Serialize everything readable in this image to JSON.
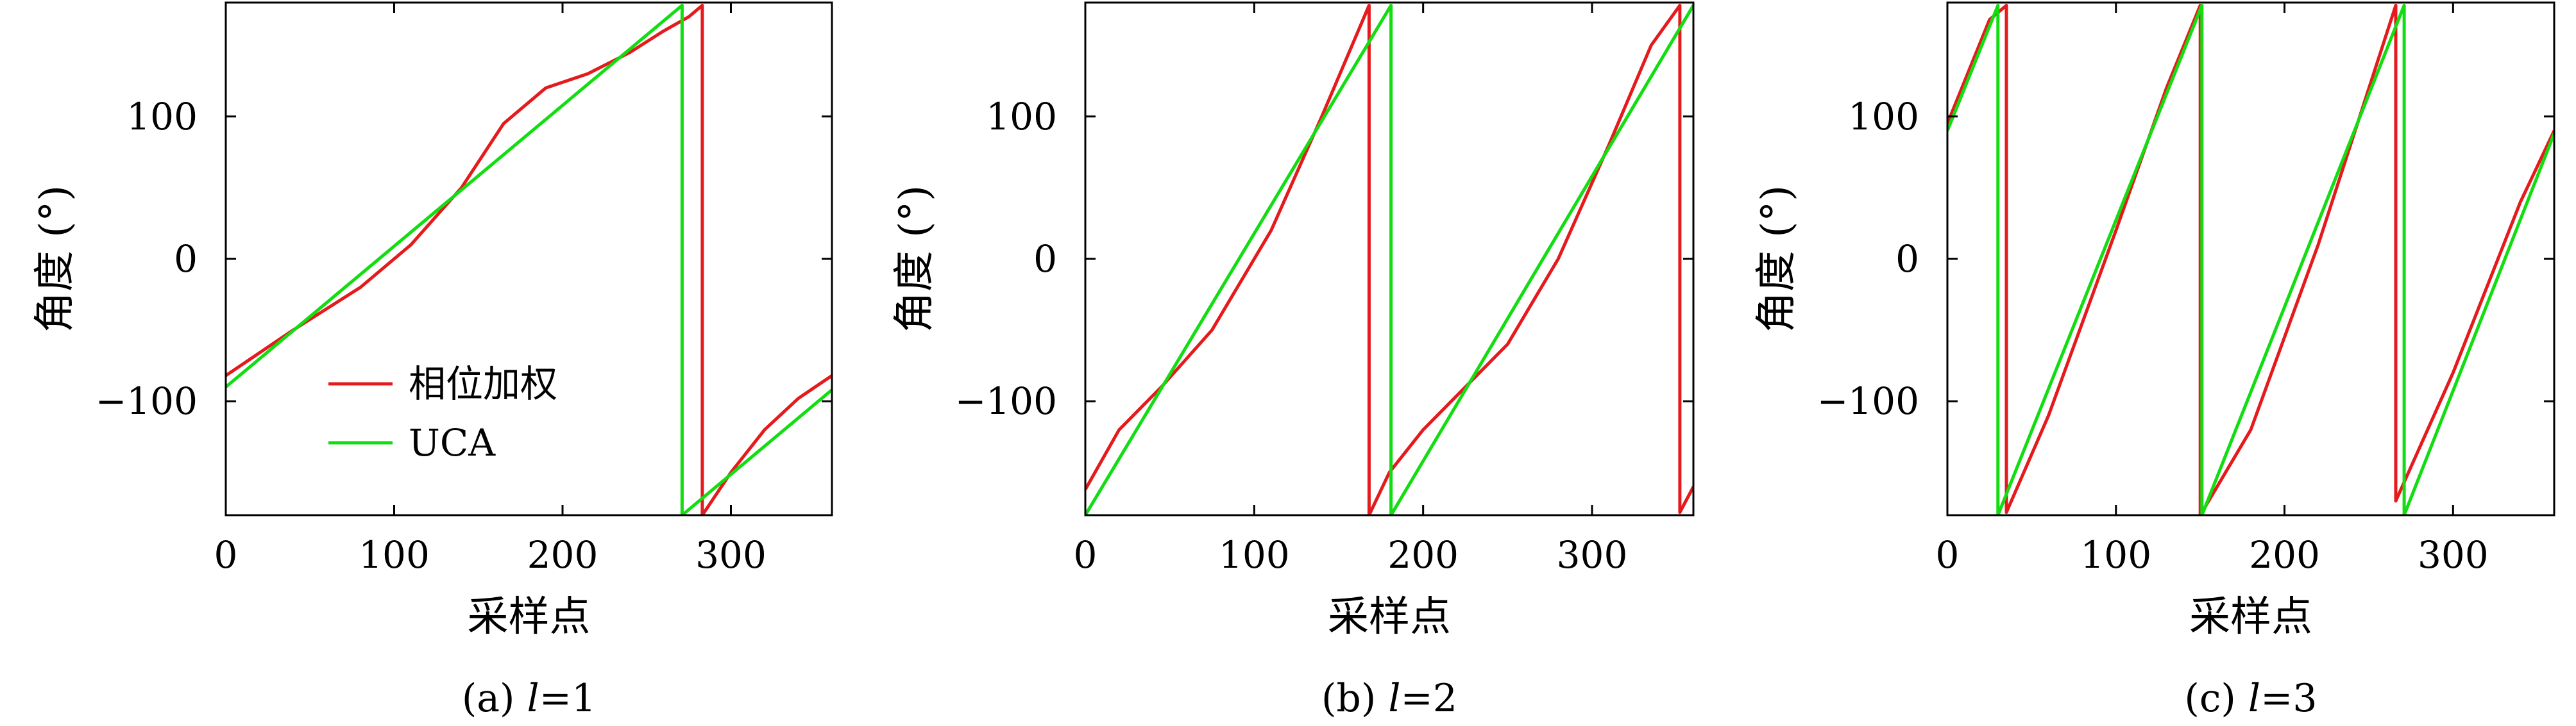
{
  "figure": {
    "panels": [
      {
        "caption_prefix": "(a) ",
        "caption_var": "l",
        "caption_suffix": "=1"
      },
      {
        "caption_prefix": "(b) ",
        "caption_var": "l",
        "caption_suffix": "=2"
      },
      {
        "caption_prefix": "(c) ",
        "caption_var": "l",
        "caption_suffix": "=3"
      }
    ],
    "colors": {
      "phase_weighted": "#e41a1c",
      "uca": "#11dd11",
      "frame": "#000000"
    }
  },
  "chart_data": [
    {
      "type": "line",
      "title": "",
      "caption": "(a) l=1",
      "xlabel": "采样点",
      "ylabel": "角度 (°)",
      "xlim": [
        0,
        360
      ],
      "ylim": [
        -180,
        180
      ],
      "xticks": [
        0,
        100,
        200,
        300
      ],
      "xtick_labels": [
        "0",
        "100",
        "200",
        "300"
      ],
      "yticks": [
        -100,
        0,
        100
      ],
      "ytick_labels": [
        "−100",
        "0",
        "100"
      ],
      "legend": {
        "position": "bottom-left",
        "entries": [
          "相位加权",
          "UCA"
        ]
      },
      "series": [
        {
          "name": "相位加权",
          "color": "#e41a1c",
          "x": [
            0,
            40,
            80,
            110,
            140,
            165,
            190,
            215,
            240,
            260,
            275,
            283,
            283,
            300,
            320,
            340,
            360
          ],
          "y": [
            -82,
            -50,
            -20,
            10,
            50,
            95,
            120,
            130,
            145,
            160,
            170,
            178,
            -180,
            -150,
            -120,
            -98,
            -82
          ]
        },
        {
          "name": "UCA",
          "color": "#11dd11",
          "x": [
            0,
            271,
            271,
            360
          ],
          "y": [
            -90,
            178,
            -180,
            -92
          ]
        }
      ]
    },
    {
      "type": "line",
      "title": "",
      "caption": "(b) l=2",
      "xlabel": "采样点",
      "ylabel": "角度 (°)",
      "xlim": [
        0,
        360
      ],
      "ylim": [
        -180,
        180
      ],
      "xticks": [
        0,
        100,
        200,
        300
      ],
      "xtick_labels": [
        "0",
        "100",
        "200",
        "300"
      ],
      "yticks": [
        -100,
        0,
        100
      ],
      "ytick_labels": [
        "−100",
        "0",
        "100"
      ],
      "series": [
        {
          "name": "相位加权",
          "color": "#e41a1c",
          "x": [
            0,
            20,
            45,
            75,
            110,
            140,
            168,
            168,
            180,
            200,
            225,
            250,
            280,
            310,
            335,
            352,
            352,
            360
          ],
          "y": [
            -162,
            -120,
            -90,
            -50,
            20,
            100,
            178,
            -180,
            -150,
            -120,
            -90,
            -60,
            0,
            80,
            150,
            178,
            -178,
            -160
          ]
        },
        {
          "name": "UCA",
          "color": "#11dd11",
          "x": [
            0,
            181,
            181,
            360
          ],
          "y": [
            -180,
            178,
            -180,
            178
          ]
        }
      ]
    },
    {
      "type": "line",
      "title": "",
      "caption": "(c) l=3",
      "xlabel": "采样点",
      "ylabel": "角度 (°)",
      "xlim": [
        0,
        360
      ],
      "ylim": [
        -180,
        180
      ],
      "xticks": [
        0,
        100,
        200,
        300
      ],
      "xtick_labels": [
        "0",
        "100",
        "200",
        "300"
      ],
      "yticks": [
        -100,
        0,
        100
      ],
      "ytick_labels": [
        "−100",
        "0",
        "100"
      ],
      "series": [
        {
          "name": "相位加权",
          "color": "#e41a1c",
          "x": [
            0,
            25,
            25,
            35,
            35,
            60,
            100,
            130,
            150,
            150,
            180,
            220,
            266,
            266,
            300,
            340,
            360
          ],
          "y": [
            95,
            168,
            168,
            178,
            -178,
            -110,
            20,
            120,
            178,
            -180,
            -120,
            10,
            178,
            -170,
            -80,
            40,
            90
          ]
        },
        {
          "name": "UCA",
          "color": "#11dd11",
          "x": [
            0,
            30,
            30,
            151,
            151,
            271,
            271,
            360
          ],
          "y": [
            90,
            178,
            -180,
            178,
            -180,
            178,
            -180,
            88
          ]
        }
      ]
    }
  ]
}
